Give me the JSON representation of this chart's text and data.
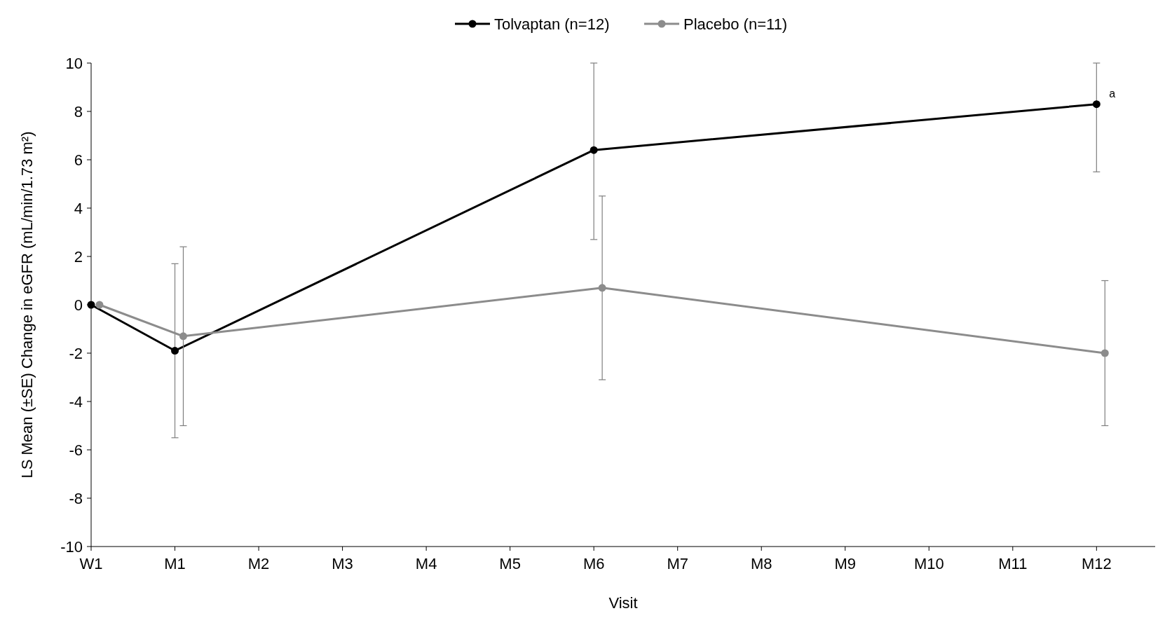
{
  "chart_data": {
    "type": "line",
    "xlabel": "Visit",
    "ylabel": "LS Mean (±SE) Change in eGFR (mL/min/1.73 m²)",
    "categories": [
      "W1",
      "M1",
      "M2",
      "M3",
      "M4",
      "M5",
      "M6",
      "M7",
      "M8",
      "M9",
      "M10",
      "M11",
      "M12"
    ],
    "series": [
      {
        "name": "Tolvaptan (n=12)",
        "color": "#000000",
        "x": [
          "W1",
          "M1",
          "M6",
          "M12"
        ],
        "values": [
          0,
          -1.9,
          6.4,
          8.3
        ],
        "errors": [
          null,
          [
            -5.5,
            1.7
          ],
          [
            2.7,
            10
          ],
          [
            5.5,
            10
          ]
        ]
      },
      {
        "name": "Placebo (n=11)",
        "color": "#8c8c8c",
        "x": [
          "W1",
          "M1",
          "M6",
          "M12"
        ],
        "values": [
          0,
          -1.3,
          0.7,
          -2
        ],
        "errors": [
          null,
          [
            -5,
            2.4
          ],
          [
            -3.1,
            4.5
          ],
          [
            -5,
            1
          ]
        ]
      }
    ],
    "ylim": [
      -10,
      10
    ],
    "yticks": [
      -10,
      -8,
      -6,
      -4,
      -2,
      0,
      2,
      4,
      6,
      8,
      10
    ],
    "annotations": [
      {
        "text": "a",
        "x": "M12",
        "y": 8.3
      }
    ],
    "legend": "top",
    "marker": "circle",
    "line_style": "solid",
    "grid": false
  }
}
